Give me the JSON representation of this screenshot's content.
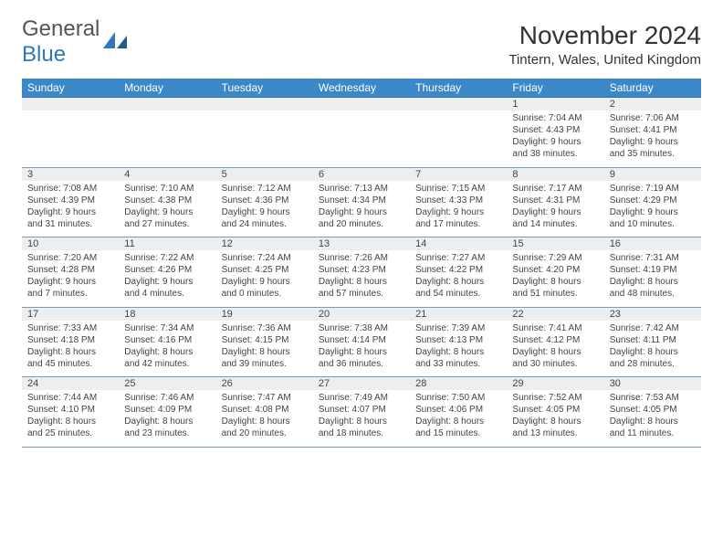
{
  "logo": {
    "text1": "General",
    "text2": "Blue"
  },
  "title": "November 2024",
  "location": "Tintern, Wales, United Kingdom",
  "dayHeaders": [
    "Sunday",
    "Monday",
    "Tuesday",
    "Wednesday",
    "Thursday",
    "Friday",
    "Saturday"
  ],
  "colors": {
    "headerBg": "#3b87c8",
    "headerText": "#ffffff",
    "daynumBg": "#eceeef",
    "borderDark": "#3b6a8f",
    "borderLight": "#7a9bb5",
    "logoBlue": "#2f77bb",
    "text": "#444444"
  },
  "fonts": {
    "title_fontsize": 28,
    "location_fontsize": 15,
    "header_fontsize": 12,
    "daynum_fontsize": 11,
    "cell_fontsize": 10
  },
  "weeks": [
    [
      null,
      null,
      null,
      null,
      null,
      {
        "n": "1",
        "sr": "7:04 AM",
        "ss": "4:43 PM",
        "dl": "9 hours and 38 minutes."
      },
      {
        "n": "2",
        "sr": "7:06 AM",
        "ss": "4:41 PM",
        "dl": "9 hours and 35 minutes."
      }
    ],
    [
      {
        "n": "3",
        "sr": "7:08 AM",
        "ss": "4:39 PM",
        "dl": "9 hours and 31 minutes."
      },
      {
        "n": "4",
        "sr": "7:10 AM",
        "ss": "4:38 PM",
        "dl": "9 hours and 27 minutes."
      },
      {
        "n": "5",
        "sr": "7:12 AM",
        "ss": "4:36 PM",
        "dl": "9 hours and 24 minutes."
      },
      {
        "n": "6",
        "sr": "7:13 AM",
        "ss": "4:34 PM",
        "dl": "9 hours and 20 minutes."
      },
      {
        "n": "7",
        "sr": "7:15 AM",
        "ss": "4:33 PM",
        "dl": "9 hours and 17 minutes."
      },
      {
        "n": "8",
        "sr": "7:17 AM",
        "ss": "4:31 PM",
        "dl": "9 hours and 14 minutes."
      },
      {
        "n": "9",
        "sr": "7:19 AM",
        "ss": "4:29 PM",
        "dl": "9 hours and 10 minutes."
      }
    ],
    [
      {
        "n": "10",
        "sr": "7:20 AM",
        "ss": "4:28 PM",
        "dl": "9 hours and 7 minutes."
      },
      {
        "n": "11",
        "sr": "7:22 AM",
        "ss": "4:26 PM",
        "dl": "9 hours and 4 minutes."
      },
      {
        "n": "12",
        "sr": "7:24 AM",
        "ss": "4:25 PM",
        "dl": "9 hours and 0 minutes."
      },
      {
        "n": "13",
        "sr": "7:26 AM",
        "ss": "4:23 PM",
        "dl": "8 hours and 57 minutes."
      },
      {
        "n": "14",
        "sr": "7:27 AM",
        "ss": "4:22 PM",
        "dl": "8 hours and 54 minutes."
      },
      {
        "n": "15",
        "sr": "7:29 AM",
        "ss": "4:20 PM",
        "dl": "8 hours and 51 minutes."
      },
      {
        "n": "16",
        "sr": "7:31 AM",
        "ss": "4:19 PM",
        "dl": "8 hours and 48 minutes."
      }
    ],
    [
      {
        "n": "17",
        "sr": "7:33 AM",
        "ss": "4:18 PM",
        "dl": "8 hours and 45 minutes."
      },
      {
        "n": "18",
        "sr": "7:34 AM",
        "ss": "4:16 PM",
        "dl": "8 hours and 42 minutes."
      },
      {
        "n": "19",
        "sr": "7:36 AM",
        "ss": "4:15 PM",
        "dl": "8 hours and 39 minutes."
      },
      {
        "n": "20",
        "sr": "7:38 AM",
        "ss": "4:14 PM",
        "dl": "8 hours and 36 minutes."
      },
      {
        "n": "21",
        "sr": "7:39 AM",
        "ss": "4:13 PM",
        "dl": "8 hours and 33 minutes."
      },
      {
        "n": "22",
        "sr": "7:41 AM",
        "ss": "4:12 PM",
        "dl": "8 hours and 30 minutes."
      },
      {
        "n": "23",
        "sr": "7:42 AM",
        "ss": "4:11 PM",
        "dl": "8 hours and 28 minutes."
      }
    ],
    [
      {
        "n": "24",
        "sr": "7:44 AM",
        "ss": "4:10 PM",
        "dl": "8 hours and 25 minutes."
      },
      {
        "n": "25",
        "sr": "7:46 AM",
        "ss": "4:09 PM",
        "dl": "8 hours and 23 minutes."
      },
      {
        "n": "26",
        "sr": "7:47 AM",
        "ss": "4:08 PM",
        "dl": "8 hours and 20 minutes."
      },
      {
        "n": "27",
        "sr": "7:49 AM",
        "ss": "4:07 PM",
        "dl": "8 hours and 18 minutes."
      },
      {
        "n": "28",
        "sr": "7:50 AM",
        "ss": "4:06 PM",
        "dl": "8 hours and 15 minutes."
      },
      {
        "n": "29",
        "sr": "7:52 AM",
        "ss": "4:05 PM",
        "dl": "8 hours and 13 minutes."
      },
      {
        "n": "30",
        "sr": "7:53 AM",
        "ss": "4:05 PM",
        "dl": "8 hours and 11 minutes."
      }
    ]
  ],
  "labels": {
    "sunrise": "Sunrise: ",
    "sunset": "Sunset: ",
    "daylight": "Daylight: "
  }
}
